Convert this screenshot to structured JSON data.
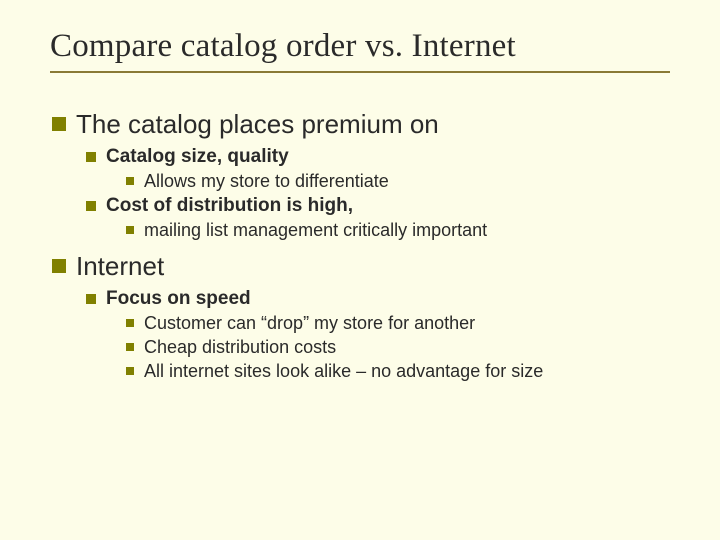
{
  "background_color": "#fdfde8",
  "title_font": "Times New Roman",
  "body_font": "Arial",
  "bullet_color": "#808000",
  "underline_color": "#8a7a36",
  "text_color": "#2a2a2a",
  "title": "Compare catalog order vs. Internet",
  "sections": [
    {
      "heading": "The catalog places premium on",
      "items": [
        {
          "label": "Catalog size, quality",
          "sub": [
            "Allows my store to differentiate"
          ]
        },
        {
          "label": "Cost of distribution is high,",
          "sub": [
            "mailing list management critically important"
          ]
        }
      ]
    },
    {
      "heading": "Internet",
      "items": [
        {
          "label": "Focus on speed",
          "sub": [
            "Customer can “drop” my store for another",
            "Cheap distribution costs",
            "All internet sites look alike – no advantage for size"
          ]
        }
      ]
    }
  ]
}
